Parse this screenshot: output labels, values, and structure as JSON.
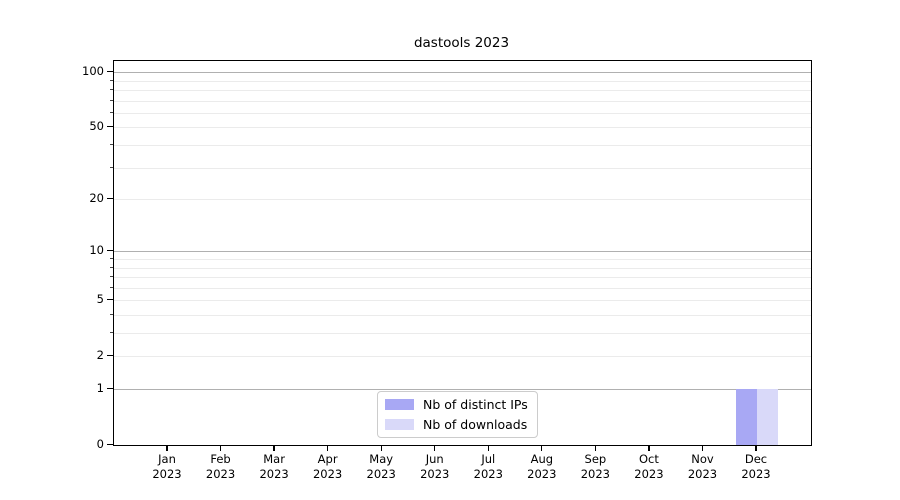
{
  "chart_data": {
    "type": "bar",
    "title": "dastools 2023",
    "x_axis": {
      "months": [
        "Jan",
        "Feb",
        "Mar",
        "Apr",
        "May",
        "Jun",
        "Jul",
        "Aug",
        "Sep",
        "Oct",
        "Nov",
        "Dec"
      ],
      "year_label": "2023"
    },
    "y_axis": {
      "scale": "log1p",
      "major_ticks": [
        0,
        1,
        2,
        5,
        10,
        20,
        50,
        100
      ],
      "minor_gridlines": [
        3,
        4,
        6,
        7,
        8,
        9,
        30,
        40,
        60,
        70,
        80,
        90
      ],
      "max": 115
    },
    "series": [
      {
        "name": "Nb of distinct IPs",
        "color": "#a8a8f4",
        "values": [
          0,
          0,
          0,
          0,
          0,
          0,
          0,
          0,
          0,
          0,
          0,
          1
        ]
      },
      {
        "name": "Nb of downloads",
        "color": "#d9d9f9",
        "values": [
          0,
          0,
          0,
          0,
          0,
          0,
          0,
          0,
          0,
          0,
          0,
          1
        ]
      }
    ],
    "legend": {
      "position": "lower center"
    },
    "grid": true
  },
  "colors": {
    "decade_gridline": "#b0b0b0",
    "minor_gridline": "#ebebeb",
    "spine": "#000000",
    "legend_border": "#cccccc"
  }
}
